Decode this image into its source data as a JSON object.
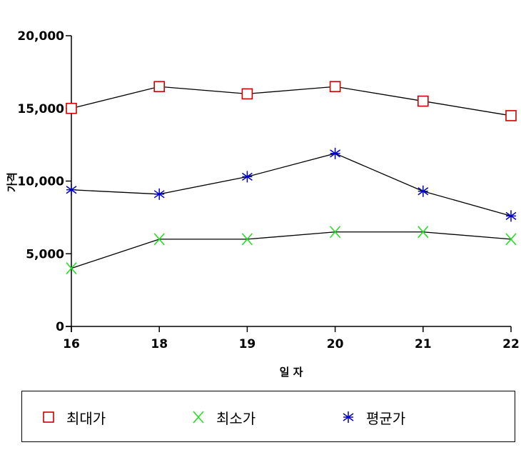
{
  "chart_data": {
    "type": "line",
    "categories": [
      "16",
      "18",
      "19",
      "20",
      "21",
      "22"
    ],
    "xlabel": "일 자",
    "ylabel": "가격",
    "ylim": [
      0,
      20000
    ],
    "yticks": [
      0,
      5000,
      10000,
      15000,
      20000
    ],
    "ytick_labels": [
      "0",
      "5,000",
      "10,000",
      "15,000",
      "20,000"
    ],
    "grid": false,
    "legend_position": "bottom",
    "series": [
      {
        "name": "최대가",
        "marker": "square",
        "color": "#cc0000",
        "values": [
          15000,
          16500,
          16000,
          16500,
          15500,
          14500
        ]
      },
      {
        "name": "최소가",
        "marker": "x",
        "color": "#22dd22",
        "values": [
          4000,
          6000,
          6000,
          6500,
          6500,
          6000
        ]
      },
      {
        "name": "평균가",
        "marker": "asterisk",
        "color": "#0000cc",
        "values": [
          9400,
          9100,
          10300,
          11900,
          9300,
          7600
        ]
      }
    ]
  }
}
